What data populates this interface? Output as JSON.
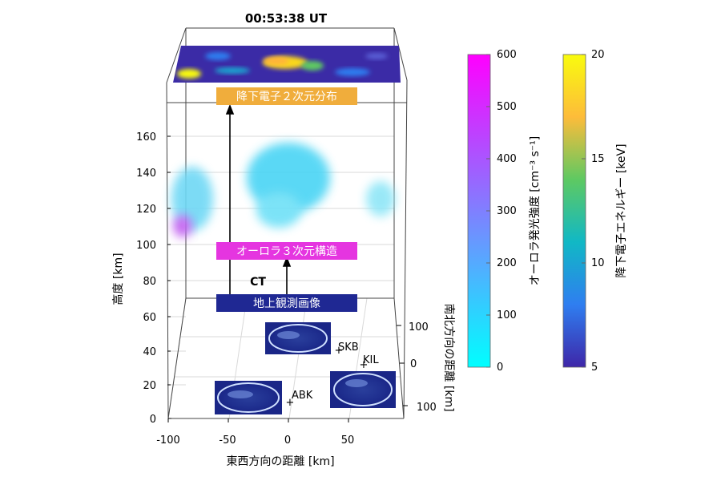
{
  "title": "00:53:38 UT",
  "axes": {
    "altitude_label": "高度 [km]",
    "altitude_ticks": [
      "0",
      "20",
      "40",
      "60",
      "80",
      "100",
      "120",
      "140",
      "160"
    ],
    "ew_label": "東西方向の距離 [km]",
    "ew_ticks": [
      "-100",
      "-50",
      "0",
      "50"
    ],
    "ns_label": "南北方向の距離 [km]",
    "ns_ticks": [
      "100",
      "0",
      "100"
    ]
  },
  "labels": {
    "top": "降下電子２次元分布",
    "middle": "オーロラ３次元構造",
    "bottom": "地上観測画像",
    "ct": "CT"
  },
  "stations": [
    "SKB",
    "KIL",
    "ABK"
  ],
  "colorbars": [
    {
      "label": "オーロラ発光強度 [cm⁻³ s⁻¹]",
      "ticks": [
        "0",
        "100",
        "200",
        "300",
        "400",
        "500",
        "600"
      ],
      "color_bottom": "#00ffff",
      "color_top": "#ff00ff"
    },
    {
      "label": "降下電子エネルギー [keV]",
      "ticks": [
        "5",
        "10",
        "15",
        "20"
      ],
      "colors": [
        "#3e26a8",
        "#2f7ef0",
        "#11b8c5",
        "#5ec962",
        "#fdbc3a",
        "#f9fb0e"
      ]
    }
  ]
}
